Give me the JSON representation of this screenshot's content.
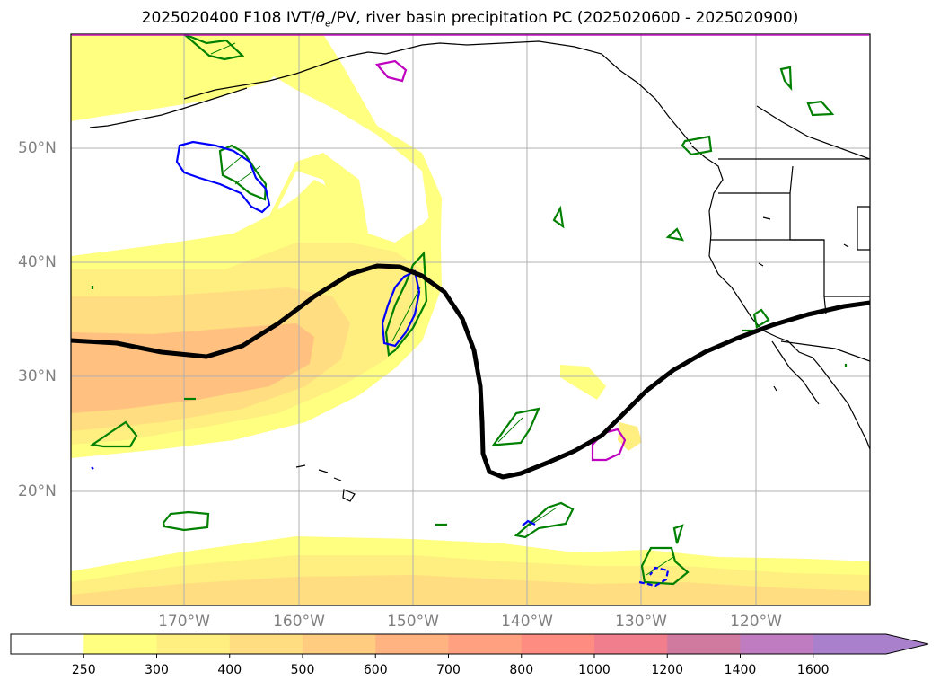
{
  "title": "2025020400 F108 IVT/θe/PV, river basin precipitation PC (2025020600 - 2025020900)",
  "title_parts": {
    "before": "2025020400 F108 IVT/",
    "theta": "θ",
    "sub": "e",
    "after": "/PV, river basin precipitation PC (2025020600 - 2025020900)"
  },
  "lat_labels": [
    "50°N",
    "40°N",
    "30°N",
    "20°N"
  ],
  "lon_labels": [
    "170°W",
    "160°W",
    "150°W",
    "140°W",
    "130°W",
    "120°W"
  ],
  "colorbar": {
    "ticks": [
      "250",
      "300",
      "400",
      "500",
      "600",
      "700",
      "800",
      "1000",
      "1200",
      "1400",
      "1600"
    ],
    "colors": [
      "#ffffff",
      "#ffff80",
      "#ffee80",
      "#ffdd80",
      "#ffcc80",
      "#ffb380",
      "#ffa080",
      "#ff8c80",
      "#f07e8c",
      "#d07aa0",
      "#c07cc0",
      "#a880cc"
    ],
    "extend": "max"
  },
  "colors": {
    "ivt_fill_1": "#ffff80",
    "ivt_fill_2": "#ffee80",
    "ivt_fill_3": "#ffdd80",
    "ivt_fill_4": "#ffc080",
    "pv_line": "#000000",
    "pc_green": "#008000",
    "pc_blue": "#0000ff",
    "pc_magenta": "#c000c0",
    "grid": "#b0b0b0",
    "coast": "#000000"
  }
}
